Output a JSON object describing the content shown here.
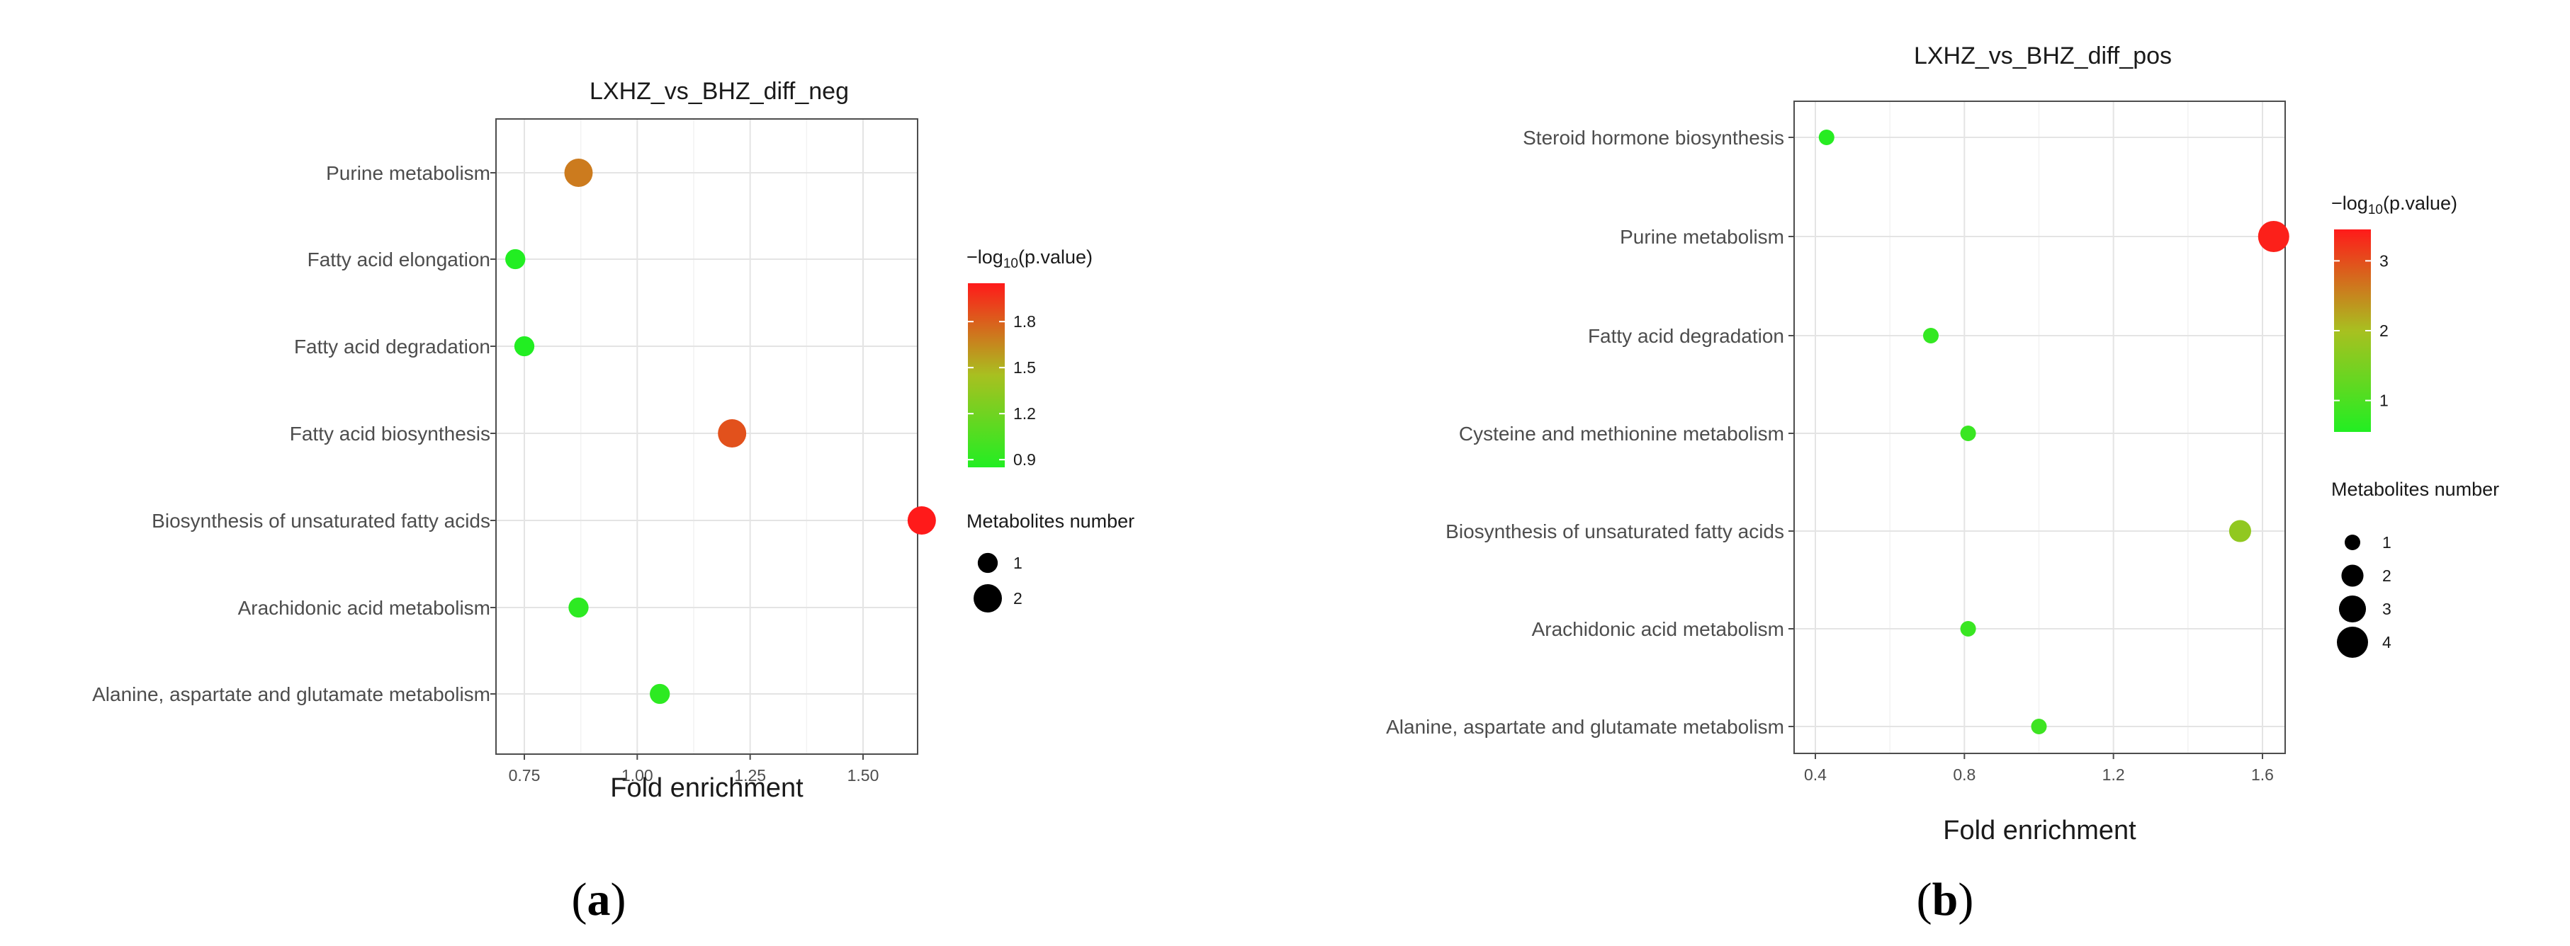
{
  "chart_data": [
    {
      "type": "scatter",
      "panel_label": "(a)",
      "title": "LXHZ_vs_BHZ_diff_neg",
      "xlabel": "Fold enrichment",
      "ylabel": "",
      "xlim": [
        0.7,
        1.67
      ],
      "xticks": [
        0.75,
        1.0,
        1.25,
        1.5
      ],
      "xtick_labels": [
        "0.75",
        "1.00",
        "1.25",
        "1.50"
      ],
      "grid": true,
      "categories": [
        "Purine metabolism",
        "Fatty acid elongation",
        "Fatty acid degradation",
        "Fatty acid biosynthesis",
        "Biosynthesis of unsaturated fatty acids",
        "Arachidonic acid metabolism",
        "Alanine, aspartate and glutamate metabolism"
      ],
      "points": [
        {
          "category": "Purine metabolism",
          "x": 0.87,
          "size": 2,
          "neglog10p": 1.7
        },
        {
          "category": "Fatty acid elongation",
          "x": 0.73,
          "size": 1,
          "neglog10p": 0.85
        },
        {
          "category": "Fatty acid degradation",
          "x": 0.75,
          "size": 1,
          "neglog10p": 0.85
        },
        {
          "category": "Fatty acid biosynthesis",
          "x": 1.21,
          "size": 2,
          "neglog10p": 1.85
        },
        {
          "category": "Biosynthesis of unsaturated fatty acids",
          "x": 1.63,
          "size": 2,
          "neglog10p": 2.05
        },
        {
          "category": "Arachidonic acid metabolism",
          "x": 0.87,
          "size": 1,
          "neglog10p": 0.9
        },
        {
          "category": "Alanine, aspartate and glutamate metabolism",
          "x": 1.05,
          "size": 1,
          "neglog10p": 0.9
        }
      ],
      "color_legend": {
        "title": "−log10(p.value)",
        "ticks": [
          0.9,
          1.2,
          1.5,
          1.8
        ],
        "tick_labels": [
          "0.9",
          "1.2",
          "1.5",
          "1.8"
        ],
        "range": [
          0.85,
          2.05
        ]
      },
      "size_legend": {
        "title": "Metabolites number",
        "entries": [
          {
            "value": 1,
            "label": "1"
          },
          {
            "value": 2,
            "label": "2"
          }
        ]
      },
      "colors": {
        "low": "#22ee22",
        "mid": "#a8c020",
        "high": "#ff1a1a"
      }
    },
    {
      "type": "scatter",
      "panel_label": "(b)",
      "title": "LXHZ_vs_BHZ_diff_pos",
      "xlabel": "Fold enrichment",
      "ylabel": "",
      "xlim": [
        0.38,
        1.68
      ],
      "xticks": [
        0.4,
        0.8,
        1.2,
        1.6
      ],
      "xtick_labels": [
        "0.4",
        "0.8",
        "1.2",
        "1.6"
      ],
      "grid": true,
      "categories": [
        "Steroid hormone biosynthesis",
        "Purine metabolism",
        "Fatty acid degradation",
        "Cysteine and methionine metabolism",
        "Biosynthesis of unsaturated fatty acids",
        "Arachidonic acid metabolism",
        "Alanine, aspartate and glutamate metabolism"
      ],
      "points": [
        {
          "category": "Steroid hormone biosynthesis",
          "x": 0.43,
          "size": 1,
          "neglog10p": 0.6
        },
        {
          "category": "Purine metabolism",
          "x": 1.63,
          "size": 4,
          "neglog10p": 3.4
        },
        {
          "category": "Fatty acid degradation",
          "x": 0.71,
          "size": 1,
          "neglog10p": 0.75
        },
        {
          "category": "Cysteine and methionine metabolism",
          "x": 0.81,
          "size": 1,
          "neglog10p": 0.8
        },
        {
          "category": "Biosynthesis of unsaturated fatty acids",
          "x": 1.54,
          "size": 2,
          "neglog10p": 1.75
        },
        {
          "category": "Arachidonic acid metabolism",
          "x": 0.81,
          "size": 1,
          "neglog10p": 0.8
        },
        {
          "category": "Alanine, aspartate and glutamate metabolism",
          "x": 1.0,
          "size": 1,
          "neglog10p": 0.85
        }
      ],
      "color_legend": {
        "title": "−log10(p.value)",
        "ticks": [
          1,
          2,
          3
        ],
        "tick_labels": [
          "1",
          "2",
          "3"
        ],
        "range": [
          0.55,
          3.45
        ]
      },
      "size_legend": {
        "title": "Metabolites number",
        "entries": [
          {
            "value": 1,
            "label": "1"
          },
          {
            "value": 2,
            "label": "2"
          },
          {
            "value": 3,
            "label": "3"
          },
          {
            "value": 4,
            "label": "4"
          }
        ]
      },
      "colors": {
        "low": "#22ee22",
        "mid": "#a8c020",
        "high": "#ff1a1a"
      }
    }
  ]
}
